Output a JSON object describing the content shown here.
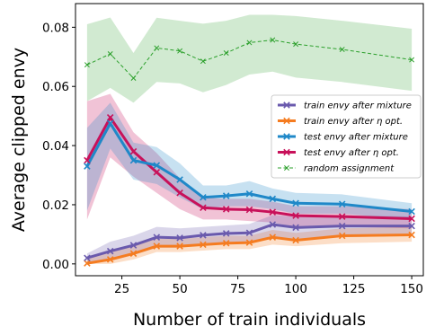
{
  "chart_data": {
    "type": "line",
    "xlabel": "Number of train individuals",
    "ylabel": "Average clipped envy",
    "xlim": [
      5,
      155
    ],
    "ylim": [
      -0.004,
      0.088
    ],
    "xticks": [
      25,
      50,
      75,
      100,
      125,
      150
    ],
    "yticks": [
      0.0,
      0.02,
      0.04,
      0.06,
      0.08
    ],
    "ytick_labels": [
      "0.00",
      "0.02",
      "0.04",
      "0.06",
      "0.08"
    ],
    "grid": false,
    "legend_position": "right",
    "x": [
      10,
      20,
      30,
      40,
      50,
      60,
      70,
      80,
      90,
      100,
      120,
      150
    ],
    "series": [
      {
        "name": "train envy after mixture",
        "color": "#6a5aad",
        "style": "solid",
        "marker": "x",
        "values": [
          0.002,
          0.0043,
          0.0063,
          0.009,
          0.0088,
          0.0097,
          0.0103,
          0.0105,
          0.0133,
          0.0123,
          0.0128,
          0.0128
        ],
        "band_lower": [
          0.0,
          0.001,
          0.003,
          0.0055,
          0.0055,
          0.0065,
          0.007,
          0.007,
          0.009,
          0.0085,
          0.009,
          0.0095
        ],
        "band_upper": [
          0.0035,
          0.0075,
          0.0095,
          0.0125,
          0.012,
          0.0125,
          0.013,
          0.0135,
          0.0165,
          0.016,
          0.0165,
          0.016
        ]
      },
      {
        "name": "train envy after η opt.",
        "color": "#f57c20",
        "style": "solid",
        "marker": "x",
        "values": [
          0.0002,
          0.0015,
          0.0035,
          0.006,
          0.006,
          0.0065,
          0.007,
          0.0072,
          0.009,
          0.008,
          0.0095,
          0.0098
        ],
        "band_lower": [
          0.0,
          0.0,
          0.0015,
          0.004,
          0.004,
          0.0045,
          0.005,
          0.005,
          0.0065,
          0.006,
          0.007,
          0.0075
        ],
        "band_upper": [
          0.0015,
          0.004,
          0.006,
          0.0085,
          0.0085,
          0.009,
          0.0095,
          0.0095,
          0.0115,
          0.0105,
          0.012,
          0.0125
        ]
      },
      {
        "name": "test envy after mixture",
        "color": "#1f88c8",
        "style": "solid",
        "marker": "x",
        "values": [
          0.033,
          0.0475,
          0.035,
          0.0333,
          0.0285,
          0.0225,
          0.023,
          0.0237,
          0.022,
          0.0205,
          0.0202,
          0.0177
        ],
        "band_lower": [
          0.018,
          0.039,
          0.0285,
          0.027,
          0.0225,
          0.0185,
          0.0195,
          0.0195,
          0.0185,
          0.017,
          0.017,
          0.015
        ],
        "band_upper": [
          0.046,
          0.0545,
          0.041,
          0.0395,
          0.034,
          0.0265,
          0.0265,
          0.028,
          0.0255,
          0.024,
          0.0235,
          0.0205
        ]
      },
      {
        "name": "test envy after η opt.",
        "color": "#c8115a",
        "style": "solid",
        "marker": "x",
        "values": [
          0.035,
          0.0495,
          0.038,
          0.031,
          0.024,
          0.019,
          0.0185,
          0.0183,
          0.0175,
          0.0163,
          0.016,
          0.0153
        ],
        "band_lower": [
          0.015,
          0.036,
          0.0295,
          0.024,
          0.0185,
          0.015,
          0.015,
          0.0145,
          0.014,
          0.0125,
          0.0125,
          0.012
        ],
        "band_upper": [
          0.055,
          0.0575,
          0.0445,
          0.0375,
          0.029,
          0.0225,
          0.022,
          0.022,
          0.021,
          0.0195,
          0.0195,
          0.0185
        ]
      },
      {
        "name": "random assignment",
        "color": "#2ca02c",
        "style": "dashed",
        "marker": "x",
        "values": [
          0.0673,
          0.071,
          0.0628,
          0.073,
          0.072,
          0.0685,
          0.0713,
          0.0748,
          0.0757,
          0.0743,
          0.0725,
          0.069
        ],
        "band_lower": [
          0.055,
          0.0595,
          0.0545,
          0.0615,
          0.061,
          0.058,
          0.0605,
          0.064,
          0.065,
          0.063,
          0.0615,
          0.0585
        ],
        "band_upper": [
          0.081,
          0.0833,
          0.0713,
          0.0832,
          0.0822,
          0.0812,
          0.0822,
          0.0842,
          0.0842,
          0.0838,
          0.0822,
          0.0795
        ]
      }
    ]
  }
}
